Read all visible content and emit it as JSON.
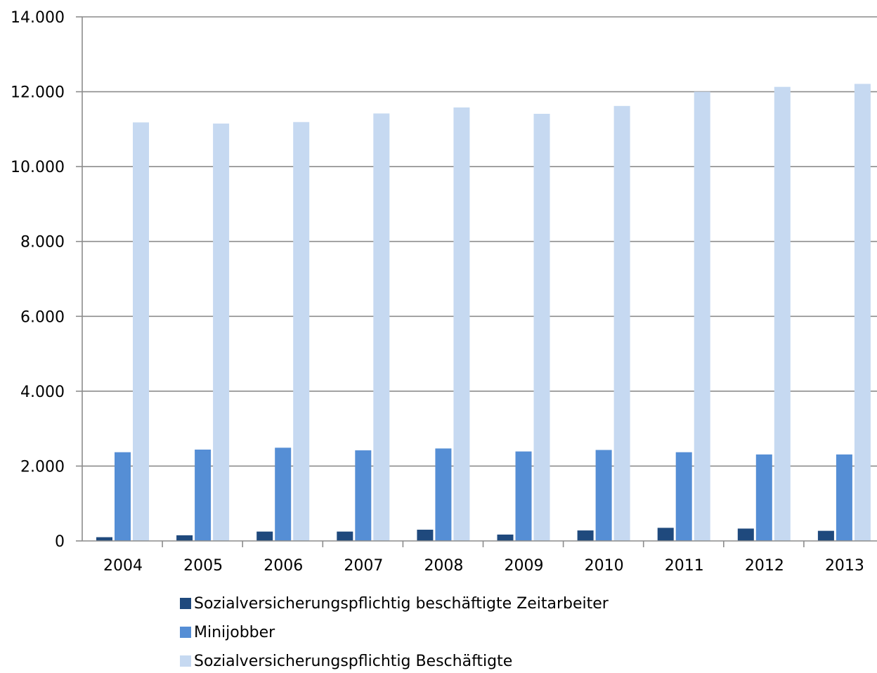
{
  "chart_data": {
    "type": "bar",
    "title": "",
    "xlabel": "",
    "ylabel": "",
    "categories": [
      "2004",
      "2005",
      "2006",
      "2007",
      "2008",
      "2009",
      "2010",
      "2011",
      "2012",
      "2013"
    ],
    "ylim": [
      0,
      14000
    ],
    "yticks": [
      0,
      2000,
      4000,
      6000,
      8000,
      10000,
      12000,
      14000
    ],
    "ytick_labels": [
      "0",
      "2.000",
      "4.000",
      "6.000",
      "8.000",
      "10.000",
      "12.000",
      "14.000"
    ],
    "grid": true,
    "legend_position": "bottom",
    "series": [
      {
        "name": "Sozialversicherungspflichtig beschäftigte Zeitarbeiter",
        "color": "#1f497d",
        "values": [
          100,
          150,
          250,
          250,
          300,
          170,
          280,
          350,
          330,
          270
        ]
      },
      {
        "name": "Minijobber",
        "color": "#558ed5",
        "values": [
          2370,
          2440,
          2490,
          2420,
          2470,
          2390,
          2430,
          2370,
          2310,
          2310
        ]
      },
      {
        "name": "Sozialversicherungspflichtig Beschäftigte",
        "color": "#c6d9f1",
        "values": [
          11180,
          11150,
          11190,
          11420,
          11580,
          11410,
          11620,
          12000,
          12130,
          12210
        ]
      }
    ]
  }
}
